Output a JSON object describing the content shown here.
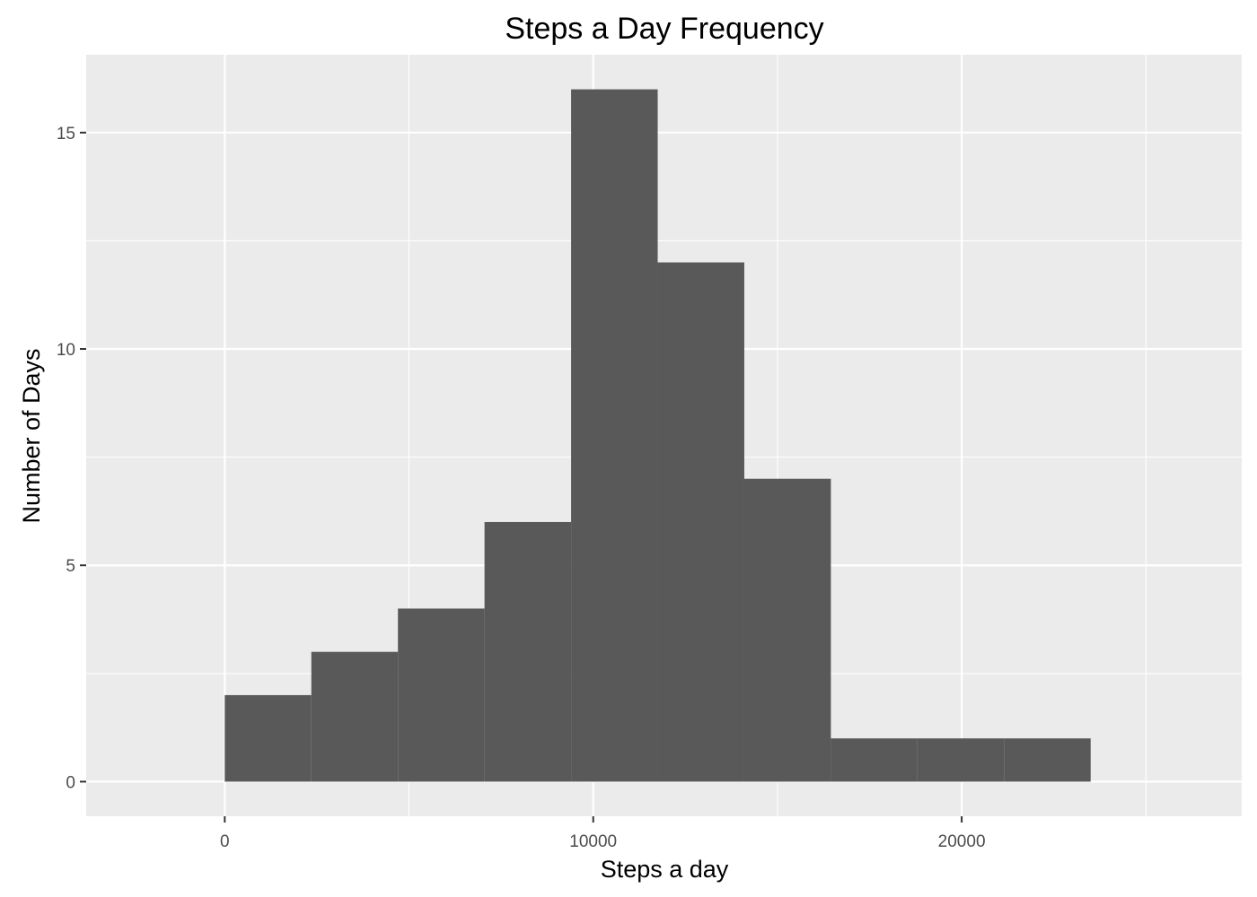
{
  "chart_data": {
    "type": "bar",
    "title": "Steps a Day Frequency",
    "xlabel": "Steps a day",
    "ylabel": "Number of Days",
    "bin_width": 2350,
    "bins": [
      {
        "x_start": 0,
        "x_end": 2350,
        "count": 2
      },
      {
        "x_start": 2350,
        "x_end": 4700,
        "count": 3
      },
      {
        "x_start": 4700,
        "x_end": 7050,
        "count": 4
      },
      {
        "x_start": 7050,
        "x_end": 9400,
        "count": 6
      },
      {
        "x_start": 9400,
        "x_end": 11750,
        "count": 16
      },
      {
        "x_start": 11750,
        "x_end": 14100,
        "count": 12
      },
      {
        "x_start": 14100,
        "x_end": 16450,
        "count": 7
      },
      {
        "x_start": 16450,
        "x_end": 18800,
        "count": 1
      },
      {
        "x_start": 18800,
        "x_end": 21150,
        "count": 1
      },
      {
        "x_start": 21150,
        "x_end": 23500,
        "count": 1
      }
    ],
    "xlim": [
      -3760,
      27600
    ],
    "ylim": [
      -0.8,
      16.8
    ],
    "x_ticks": [
      0,
      10000,
      20000
    ],
    "x_tick_labels": [
      "0",
      "10000",
      "20000"
    ],
    "x_minor_ticks": [
      5000,
      15000,
      25000
    ],
    "y_ticks": [
      0,
      5,
      10,
      15
    ],
    "y_tick_labels": [
      "0",
      "5",
      "10",
      "15"
    ],
    "y_minor_ticks": [
      2.5,
      7.5,
      12.5
    ],
    "grid": true,
    "legend": "none",
    "colors": {
      "bar": "#595959",
      "panel": "#ebebeb",
      "grid": "#ffffff",
      "tick_text": "#4d4d4d"
    }
  }
}
